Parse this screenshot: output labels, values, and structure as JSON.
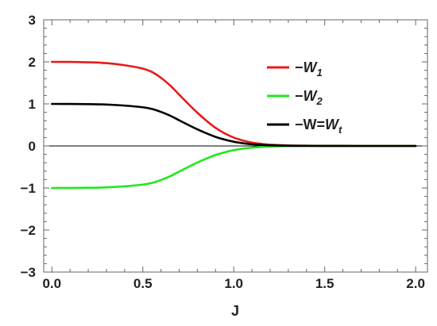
{
  "chart_data": {
    "type": "line",
    "xlabel": "J",
    "ylabel": "",
    "xlim": [
      0,
      2.0
    ],
    "ylim": [
      -3,
      3
    ],
    "x_ticks": [
      0.0,
      0.5,
      1.0,
      1.5,
      2.0
    ],
    "x_tick_labels": [
      "0.0",
      "0.5",
      "1.0",
      "1.5",
      "2.0"
    ],
    "y_ticks": [
      -3,
      -2,
      -1,
      0,
      1,
      2,
      3
    ],
    "y_tick_labels": [
      "−3",
      "−2",
      "−1",
      "0",
      "1",
      "2",
      "3"
    ],
    "grid": false,
    "legend_position": "top-right",
    "zero_line": true,
    "x": [
      0.0,
      0.1,
      0.2,
      0.3,
      0.4,
      0.5,
      0.55,
      0.6,
      0.65,
      0.7,
      0.75,
      0.8,
      0.85,
      0.9,
      0.95,
      1.0,
      1.05,
      1.1,
      1.15,
      1.2,
      1.3,
      1.4,
      1.5,
      1.6,
      1.7,
      1.8,
      1.9,
      2.0
    ],
    "series": [
      {
        "legend_prefix": "−",
        "legend_var": "W",
        "legend_sub": "1",
        "color": "#e8191b",
        "values": [
          2.0,
          1.998,
          1.99,
          1.97,
          1.92,
          1.84,
          1.76,
          1.62,
          1.44,
          1.22,
          1.0,
          0.79,
          0.6,
          0.43,
          0.3,
          0.2,
          0.13,
          0.08,
          0.05,
          0.03,
          0.012,
          0.005,
          0.002,
          0.001,
          0.0,
          0.0,
          0.0,
          0.0
        ]
      },
      {
        "legend_prefix": "−",
        "legend_var": "W",
        "legend_sub": "2",
        "color": "#1ee81e",
        "values": [
          -1.0,
          -0.999,
          -0.995,
          -0.985,
          -0.96,
          -0.92,
          -0.88,
          -0.81,
          -0.72,
          -0.61,
          -0.5,
          -0.395,
          -0.3,
          -0.215,
          -0.15,
          -0.1,
          -0.065,
          -0.04,
          -0.025,
          -0.015,
          -0.006,
          -0.0025,
          -0.001,
          -0.0005,
          0.0,
          0.0,
          0.0,
          0.0
        ]
      },
      {
        "legend_prefix": "−W=",
        "legend_var": "W",
        "legend_sub": "t",
        "color": "#000000",
        "values": [
          1.0,
          0.999,
          0.995,
          0.985,
          0.96,
          0.92,
          0.88,
          0.81,
          0.72,
          0.61,
          0.5,
          0.395,
          0.3,
          0.215,
          0.15,
          0.1,
          0.065,
          0.04,
          0.025,
          0.015,
          0.006,
          0.0025,
          0.001,
          0.0005,
          0.0,
          0.0,
          0.0,
          0.0
        ]
      }
    ]
  }
}
